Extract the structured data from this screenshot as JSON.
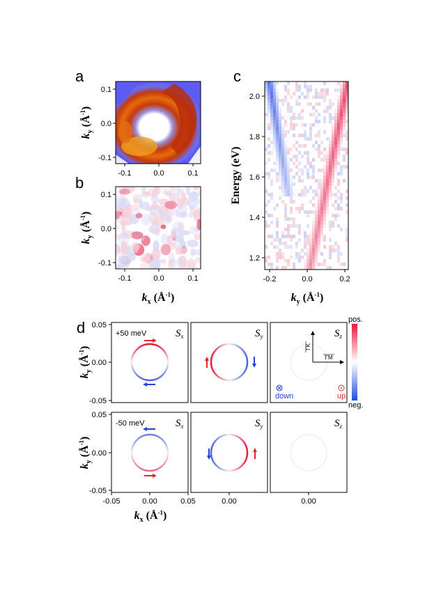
{
  "panels": {
    "a": {
      "letter": "a",
      "ylabel": "k",
      "ylabel_sub": "y",
      "ylabel_unit": " (Å",
      "ylabel_exp": "-1",
      "ylabel_close": ")"
    },
    "b": {
      "letter": "b",
      "ylabel": "k",
      "ylabel_sub": "y",
      "ylabel_unit": " (Å",
      "ylabel_exp": "-1",
      "ylabel_close": ")",
      "xlabel": "k",
      "xlabel_sub": "x",
      "xlabel_unit": " (Å",
      "xlabel_exp": "-1",
      "xlabel_close": ")"
    },
    "c": {
      "letter": "c",
      "ylabel": "Energy (eV)",
      "xlabel": "k",
      "xlabel_sub": "y",
      "xlabel_unit": " (Å",
      "xlabel_exp": "-1",
      "xlabel_close": ")"
    },
    "d": {
      "letter": "d",
      "ylabel": "k",
      "ylabel_sub": "y",
      "ylabel_unit": " (Å",
      "ylabel_exp": "-1",
      "ylabel_close": ")",
      "xlabel": "k",
      "xlabel_sub": "x",
      "xlabel_unit": " (Å",
      "xlabel_exp": "-1",
      "xlabel_close": ")",
      "energy_top": "+50 meV",
      "energy_bottom": "-50 meV",
      "spin_labels": [
        "S",
        "S",
        "S"
      ],
      "spin_subs": [
        "x",
        "y",
        "z"
      ],
      "colorbar_pos": "pos.",
      "colorbar_neg": "neg.",
      "down_label": "down",
      "up_label": "up",
      "gamma_k": "ΓK",
      "gamma_m": "ΓM"
    }
  },
  "ticks": {
    "ab_y": [
      "0.1",
      "0.0",
      "-0.1"
    ],
    "a_x": [
      "-0.1",
      "0.0",
      "0.1"
    ],
    "b_x": [
      "-0.1",
      "0.0",
      "0.1"
    ],
    "c_y": [
      "2.0",
      "1.8",
      "1.6",
      "1.4",
      "1.2"
    ],
    "c_x": [
      "-0.2",
      "0.0",
      "0.2"
    ],
    "d_y": [
      "0.05",
      "0.00",
      "-0.05"
    ],
    "d_x1": [
      "-0.05",
      "0.00",
      "0.05"
    ],
    "d_x2": "0.00",
    "d_x3": "0.00"
  },
  "colors": {
    "pos": "#e8193c",
    "neg": "#1f4fe0",
    "arrow_red": "#e8232a",
    "arrow_blue": "#2343d8"
  }
}
